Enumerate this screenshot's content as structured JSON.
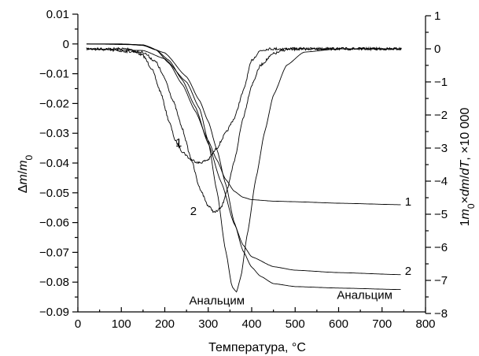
{
  "chart_data": {
    "type": "line",
    "title": "",
    "xlabel": "Температура, °С",
    "ylabel_left_parts": [
      "Δ",
      "m",
      "/",
      "m",
      "0"
    ],
    "ylabel_right_parts": [
      "1",
      "m",
      "0",
      "×",
      "dm",
      "/",
      "dT",
      ", ×10 000"
    ],
    "xlim": [
      0,
      800
    ],
    "ylim_left": [
      -0.09,
      0.01
    ],
    "ylim_right": [
      -8,
      1
    ],
    "x_ticks": [
      "0",
      "100",
      "200",
      "300",
      "400",
      "500",
      "600",
      "700",
      "800"
    ],
    "y_left_ticks": [
      "0.01",
      "0",
      "−0.01",
      "−0.02",
      "−0.03",
      "−0.04",
      "−0.05",
      "−0.06",
      "−0.07",
      "−0.08",
      "−0.09"
    ],
    "y_right_ticks": [
      "1",
      "0",
      "−1",
      "−2",
      "−3",
      "−4",
      "−5",
      "−6",
      "−7",
      "−8"
    ],
    "grid": false,
    "series": [
      {
        "axis": "left",
        "noisy": false,
        "x": [
          20,
          100,
          150,
          180,
          210,
          240,
          270,
          300,
          320,
          340,
          360,
          380,
          400,
          450,
          500,
          600,
          745
        ],
        "y": [
          0,
          0,
          -0.0005,
          -0.002,
          -0.0065,
          -0.0135,
          -0.0225,
          -0.0325,
          -0.039,
          -0.0455,
          -0.0495,
          -0.0515,
          -0.0523,
          -0.0528,
          -0.053,
          -0.0535,
          -0.054
        ]
      },
      {
        "axis": "left",
        "noisy": false,
        "x": [
          20,
          100,
          150,
          180,
          210,
          240,
          270,
          300,
          330,
          360,
          380,
          400,
          450,
          500,
          600,
          745
        ],
        "y": [
          0,
          0,
          -0.0003,
          -0.002,
          -0.0055,
          -0.012,
          -0.021,
          -0.0335,
          -0.0465,
          -0.0605,
          -0.0675,
          -0.0715,
          -0.0748,
          -0.076,
          -0.0768,
          -0.0775
        ]
      },
      {
        "axis": "left",
        "noisy": false,
        "x": [
          20,
          150,
          200,
          250,
          280,
          300,
          320,
          340,
          360,
          380,
          400,
          420,
          450,
          500,
          600,
          745
        ],
        "y": [
          0,
          -0.0003,
          -0.003,
          -0.011,
          -0.019,
          -0.026,
          -0.0355,
          -0.047,
          -0.06,
          -0.0695,
          -0.075,
          -0.078,
          -0.0805,
          -0.0815,
          -0.082,
          -0.0825
        ]
      },
      {
        "axis": "right",
        "noisy": true,
        "x": [
          20,
          120,
          150,
          170,
          190,
          210,
          225,
          240,
          260,
          280,
          300,
          320,
          340,
          360,
          380,
          400,
          420,
          440,
          500,
          600,
          745
        ],
        "y": [
          0,
          0,
          -0.2,
          -0.6,
          -1.3,
          -2.2,
          -2.8,
          -3.1,
          -3.35,
          -3.45,
          -3.35,
          -3.0,
          -2.55,
          -2.1,
          -1.3,
          -0.35,
          -0.05,
          0,
          0,
          0,
          0
        ]
      },
      {
        "axis": "right",
        "noisy": true,
        "x": [
          20,
          150,
          180,
          200,
          220,
          240,
          260,
          280,
          300,
          315,
          330,
          345,
          360,
          380,
          400,
          420,
          450,
          480,
          520,
          600,
          745
        ],
        "y": [
          0,
          -0.1,
          -0.4,
          -0.9,
          -1.6,
          -2.4,
          -3.3,
          -4.2,
          -4.75,
          -4.95,
          -4.8,
          -4.2,
          -3.4,
          -2.1,
          -1.1,
          -0.5,
          -0.15,
          -0.02,
          0,
          0,
          0
        ]
      },
      {
        "axis": "right",
        "noisy": false,
        "x": [
          20,
          150,
          200,
          250,
          280,
          300,
          320,
          340,
          355,
          365,
          375,
          390,
          410,
          430,
          450,
          480,
          520,
          600,
          745
        ],
        "y": [
          0,
          -0.05,
          -0.3,
          -1.0,
          -1.8,
          -2.8,
          -4.3,
          -6.1,
          -7.2,
          -7.35,
          -6.9,
          -5.6,
          -3.9,
          -2.5,
          -1.4,
          -0.5,
          -0.1,
          0,
          0
        ]
      }
    ],
    "annotations": [
      {
        "text": "1",
        "x": 232,
        "y_left": -0.0345
      },
      {
        "text": "2",
        "x": 266,
        "y_left": -0.0575
      },
      {
        "text": "Анальцим",
        "x": 320,
        "y_left": -0.0875
      },
      {
        "text": "1",
        "x": 760,
        "y_left": -0.0543
      },
      {
        "text": "2",
        "x": 760,
        "y_left": -0.0775
      },
      {
        "text": "Анальцим",
        "x": 660,
        "y_left": -0.0857
      }
    ]
  }
}
